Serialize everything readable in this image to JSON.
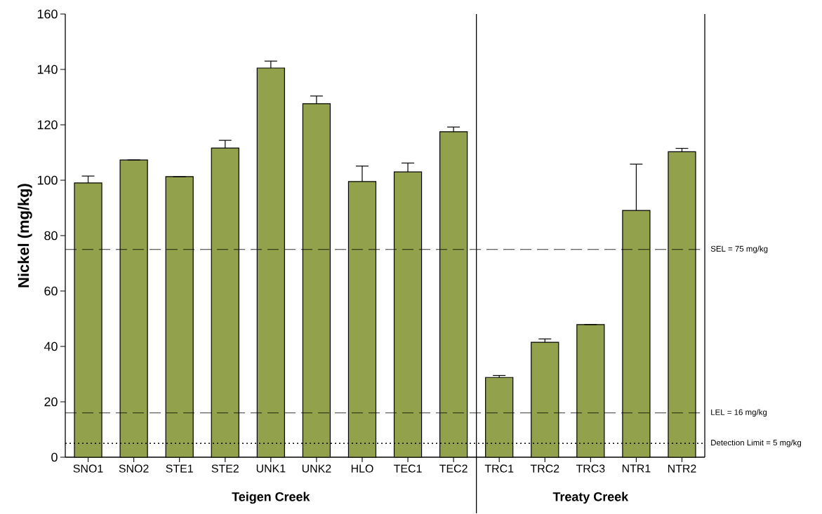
{
  "chart_data": {
    "type": "bar",
    "ylabel": "Nickel (mg/kg)",
    "categories": [
      "SNO1",
      "SNO2",
      "STE1",
      "STE2",
      "UNK1",
      "UNK2",
      "HLO",
      "TEC1",
      "TEC2",
      "TRC1",
      "TRC2",
      "TRC3",
      "NTR1",
      "NTR2"
    ],
    "values": [
      99,
      107.3,
      101.3,
      111.6,
      140.5,
      127.6,
      99.5,
      103,
      117.5,
      28.8,
      41.5,
      47.9,
      89.1,
      110.3
    ],
    "errors": [
      2.5,
      null,
      null,
      2.8,
      2.5,
      2.8,
      5.6,
      3.2,
      1.7,
      0.7,
      1.2,
      null,
      16.7,
      1.2
    ],
    "color": "#92a24c",
    "ylim": [
      0,
      160
    ],
    "yticks": [
      0,
      20,
      40,
      60,
      80,
      100,
      120,
      140,
      160
    ],
    "ref_lines": [
      {
        "axis": "y",
        "value": 75,
        "label": "SEL =  75 mg/kg",
        "line_style": "dashed"
      },
      {
        "axis": "y",
        "value": 16,
        "label": "LEL = 16 mg/kg",
        "line_style": "dashed"
      },
      {
        "axis": "y",
        "value": 5,
        "label": "Detection Limit = 5 mg/kg",
        "line_style": "dotted"
      }
    ],
    "annotations": [
      "Teigen Creek",
      "Treaty Creek"
    ]
  }
}
